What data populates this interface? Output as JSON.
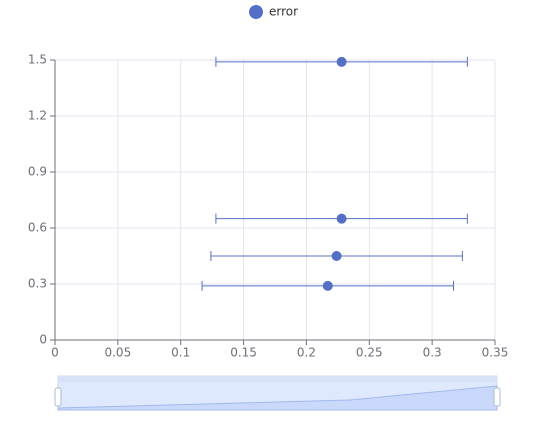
{
  "chart_data": {
    "type": "scatter-error",
    "series": [
      {
        "name": "error",
        "color": "#5470c6",
        "x": [
          0.228,
          0.228,
          0.224,
          0.217
        ],
        "values": [
          1.49,
          0.65,
          0.45,
          0.29
        ],
        "errors": [
          0.1,
          0.1,
          0.1,
          0.1
        ]
      }
    ],
    "xlim": [
      0,
      0.35
    ],
    "xticks": [
      0,
      0.05,
      0.1,
      0.15,
      0.2,
      0.25,
      0.3,
      0.35
    ],
    "ylim": [
      0,
      1.5
    ],
    "yticks": [
      0,
      0.3,
      0.6,
      0.9,
      1.2,
      1.5
    ],
    "grid": true
  }
}
